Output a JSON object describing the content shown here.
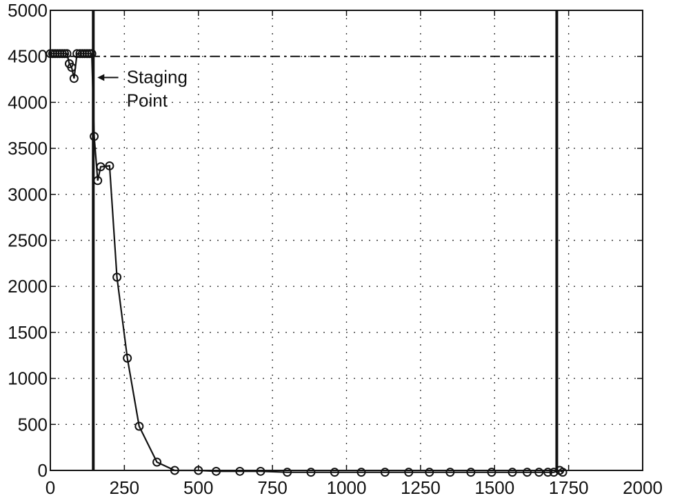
{
  "chart_data": {
    "type": "line",
    "title": "",
    "xlabel": "",
    "ylabel": "",
    "xlim": [
      0,
      2000
    ],
    "ylim": [
      0,
      5000
    ],
    "x_ticks": [
      0,
      250,
      500,
      750,
      1000,
      1250,
      1500,
      1750,
      2000
    ],
    "y_ticks": [
      0,
      500,
      1000,
      1500,
      2000,
      2500,
      3000,
      3500,
      4000,
      4500,
      5000
    ],
    "grid": true,
    "colors": {
      "line": "#111111",
      "grid": "#333333",
      "background": "#ffffff"
    },
    "series": [
      {
        "marker": "circle",
        "x": [
          0,
          8,
          16,
          24,
          32,
          40,
          48,
          56,
          64,
          72,
          80,
          90,
          100,
          108,
          116,
          124,
          132,
          140,
          148,
          160,
          170,
          200,
          225,
          260,
          300,
          360,
          420,
          500,
          560,
          640,
          710,
          800,
          880,
          960,
          1050,
          1130,
          1210,
          1280,
          1350,
          1420,
          1490,
          1560,
          1610,
          1650,
          1680,
          1700,
          1720,
          1730
        ],
        "y": [
          4530,
          4530,
          4530,
          4530,
          4530,
          4530,
          4530,
          4530,
          4420,
          4380,
          4260,
          4530,
          4530,
          4530,
          4530,
          4530,
          4530,
          4530,
          3630,
          3150,
          3300,
          3310,
          2100,
          1220,
          480,
          90,
          0,
          0,
          -10,
          -10,
          -10,
          -20,
          -20,
          -20,
          -20,
          -20,
          -20,
          -20,
          -20,
          -20,
          -20,
          -20,
          -20,
          -20,
          -20,
          -20,
          0,
          -20
        ]
      }
    ],
    "reference_lines": [
      {
        "orientation": "horizontal",
        "value": 4500,
        "style": "dashed"
      },
      {
        "orientation": "vertical",
        "value": 145,
        "style": "solid"
      },
      {
        "orientation": "vertical",
        "value": 1710,
        "style": "solid"
      }
    ],
    "annotations": [
      {
        "lines": [
          "Staging",
          "Point"
        ],
        "x": 160,
        "y": 4150,
        "arrow": true
      }
    ]
  }
}
